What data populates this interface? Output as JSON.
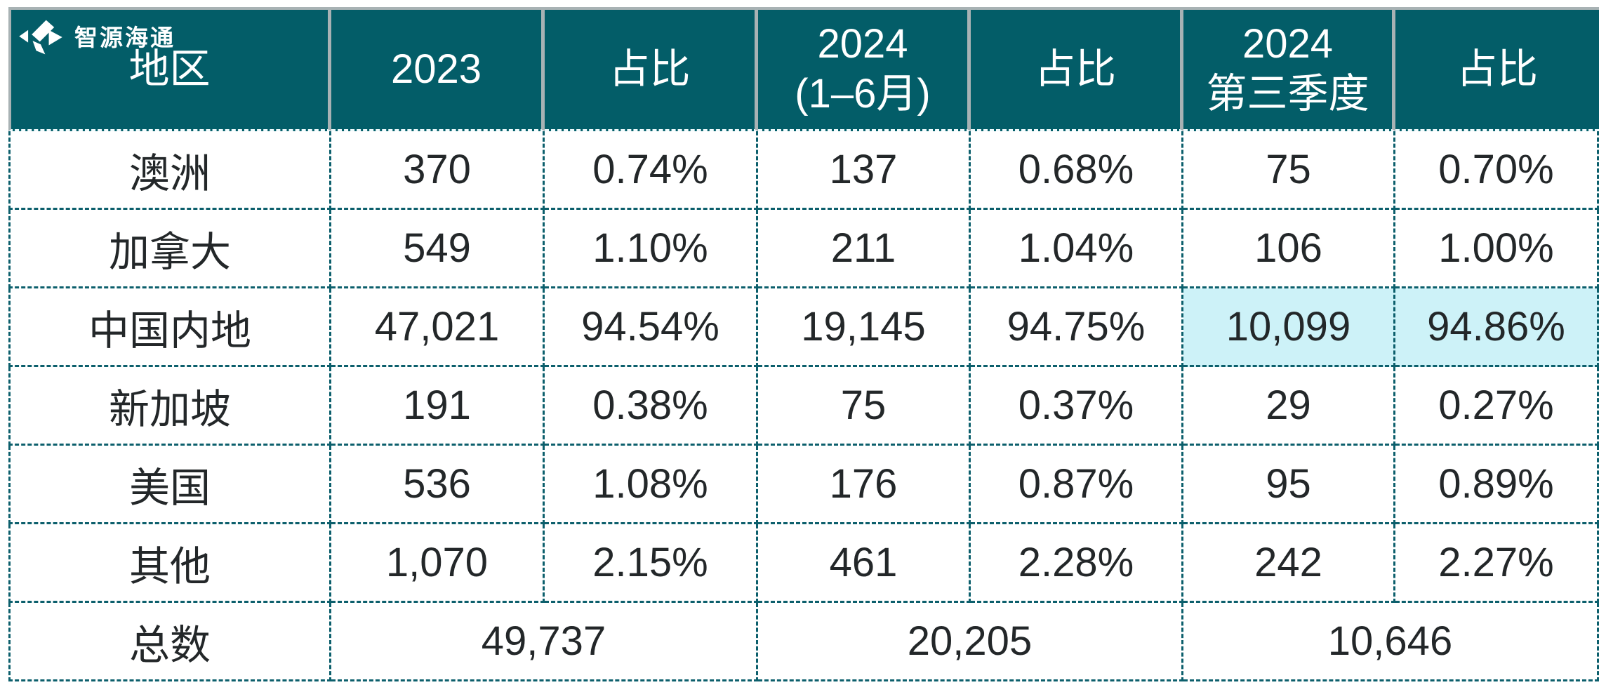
{
  "brand": {
    "name": "智源海通",
    "icon": "diamond-arrows-logo-icon"
  },
  "colors": {
    "header_background": "#035d68",
    "header_text": "#ffffff",
    "grid_dashed_teal": "#0c5f6c",
    "header_divider_gray": "#a8b2b4",
    "highlight_cyan": "#cdf2f8",
    "body_text": "#232729",
    "page_background": "#ffffff"
  },
  "chart_data": {
    "type": "table",
    "columns": [
      "地区",
      "2023",
      "占比",
      "2024 (1–6月)",
      "占比",
      "2024 第三季度",
      "占比"
    ],
    "header_lines": [
      [
        "地区"
      ],
      [
        "2023"
      ],
      [
        "占比"
      ],
      [
        "2024",
        "(1–6月)"
      ],
      [
        "占比"
      ],
      [
        "2024",
        "第三季度"
      ],
      [
        "占比"
      ]
    ],
    "rows": [
      [
        "澳洲",
        "370",
        "0.74%",
        "137",
        "0.68%",
        "75",
        "0.70%"
      ],
      [
        "加拿大",
        "549",
        "1.10%",
        "211",
        "1.04%",
        "106",
        "1.00%"
      ],
      [
        "中国内地",
        "47,021",
        "94.54%",
        "19,145",
        "94.75%",
        "10,099",
        "94.86%"
      ],
      [
        "新加坡",
        "191",
        "0.38%",
        "75",
        "0.37%",
        "29",
        "0.27%"
      ],
      [
        "美国",
        "536",
        "1.08%",
        "176",
        "0.87%",
        "95",
        "0.89%"
      ],
      [
        "其他",
        "1,070",
        "2.15%",
        "461",
        "2.28%",
        "242",
        "2.27%"
      ]
    ],
    "total_row": {
      "label": "总数",
      "totals": [
        {
          "spans": [
            "2023",
            "占比"
          ],
          "value": "49,737"
        },
        {
          "spans": [
            "2024 (1–6月)",
            "占比"
          ],
          "value": "20,205"
        },
        {
          "spans": [
            "2024 第三季度",
            "占比"
          ],
          "value": "10,646"
        }
      ]
    },
    "highlighted": {
      "row_label": "中国内地",
      "row_index": 2,
      "col_indices": [
        5,
        6
      ]
    },
    "layout": {
      "grid": "dashed-teal",
      "header_style": "solid-teal-band"
    }
  }
}
